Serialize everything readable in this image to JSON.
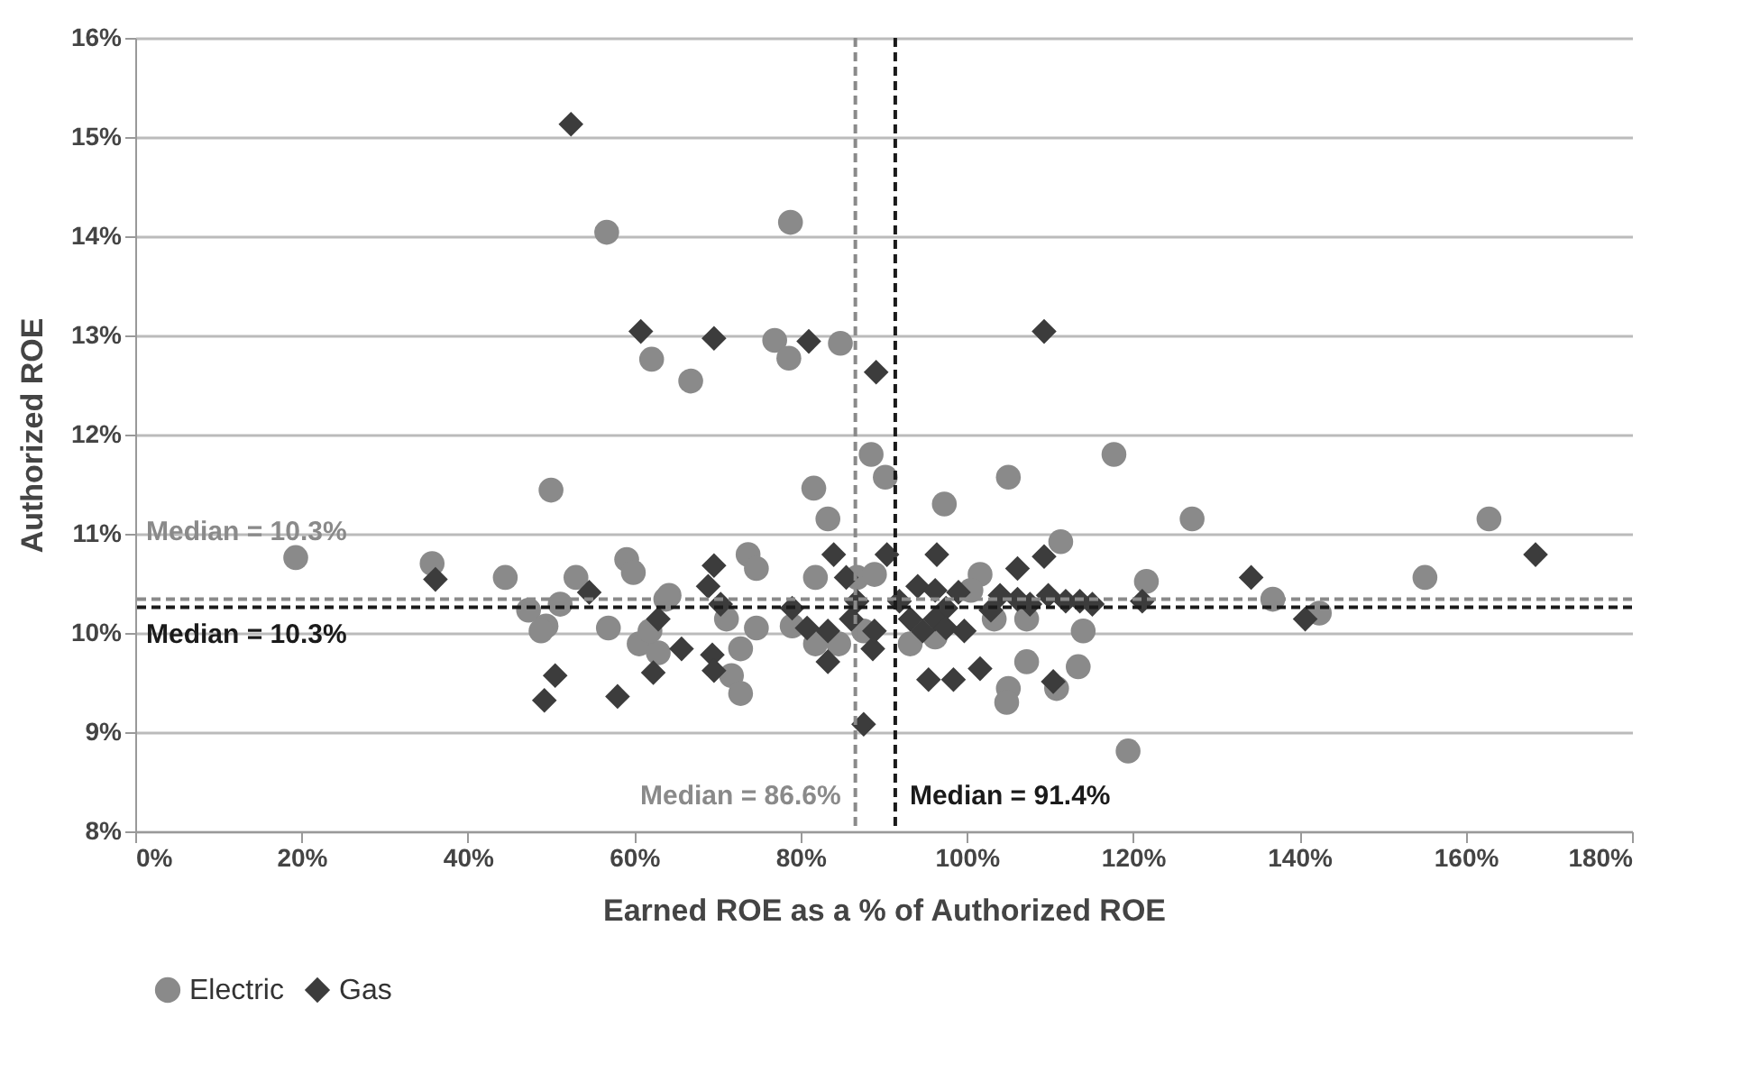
{
  "chart_data": {
    "type": "scatter",
    "xlabel": "Earned ROE as a % of Authorized ROE",
    "ylabel": "Authorized ROE",
    "xlim": [
      0,
      180
    ],
    "ylim": [
      8,
      16
    ],
    "xticks": [
      {
        "value": 0,
        "label": "0%"
      },
      {
        "value": 20,
        "label": "20%"
      },
      {
        "value": 40,
        "label": "40%"
      },
      {
        "value": 60,
        "label": "60%"
      },
      {
        "value": 80,
        "label": "80%"
      },
      {
        "value": 100,
        "label": "100%"
      },
      {
        "value": 120,
        "label": "120%"
      },
      {
        "value": 140,
        "label": "140%"
      },
      {
        "value": 160,
        "label": "160%"
      },
      {
        "value": 180,
        "label": "180%"
      }
    ],
    "yticks": [
      {
        "value": 8,
        "label": "8%"
      },
      {
        "value": 9,
        "label": "9%"
      },
      {
        "value": 10,
        "label": "10%"
      },
      {
        "value": 11,
        "label": "11%"
      },
      {
        "value": 12,
        "label": "12%"
      },
      {
        "value": 13,
        "label": "13%"
      },
      {
        "value": 14,
        "label": "14%"
      },
      {
        "value": 15,
        "label": "15%"
      },
      {
        "value": 16,
        "label": "16%"
      }
    ],
    "grid": "y",
    "legend": "bottom",
    "series": [
      {
        "name": "Electric",
        "color": "#8a8a8a",
        "marker": "circle",
        "x": [
          56.7,
          78.8,
          62.1,
          66.8,
          76.9,
          78.6,
          84.8,
          88.5,
          117.7,
          105,
          90.2,
          50.0,
          19.3,
          35.7,
          44.5,
          53.0,
          59.1,
          59.9,
          47.3,
          49.4,
          51.1,
          48.8,
          56.9,
          60.6,
          62.9,
          63.8,
          97.3,
          81.6,
          83.3,
          111.3,
          73.7,
          74.7,
          81.8,
          121.6,
          114.0,
          113.4,
          110.8,
          105.0,
          104.8,
          107.2,
          119.4,
          71.7,
          72.8,
          72.8,
          71.1,
          74.7,
          64.2,
          61.9,
          79.0,
          81.8,
          84.6,
          87.6,
          86.8,
          88.9,
          93.2,
          96.2,
          101.6,
          100.5,
          107.2,
          103.3,
          127.1,
          162.8,
          136.8,
          142.4,
          155.1
        ],
        "values": [
          14.04,
          14.14,
          12.76,
          12.54,
          12.95,
          12.77,
          12.92,
          11.8,
          11.8,
          11.57,
          11.57,
          11.44,
          10.76,
          10.7,
          10.56,
          10.56,
          10.74,
          10.61,
          10.23,
          10.07,
          10.29,
          10.02,
          10.05,
          9.89,
          9.8,
          10.34,
          11.3,
          11.46,
          11.15,
          10.92,
          10.79,
          10.65,
          10.56,
          10.52,
          10.02,
          9.66,
          9.44,
          9.44,
          9.3,
          9.71,
          8.81,
          9.57,
          9.39,
          9.84,
          10.14,
          10.05,
          10.38,
          10.02,
          10.07,
          9.89,
          9.89,
          10.02,
          10.56,
          10.59,
          9.89,
          9.96,
          10.59,
          10.43,
          10.14,
          10.14,
          11.15,
          11.15,
          10.34,
          10.2,
          10.56
        ]
      },
      {
        "name": "Gas",
        "color": "#3c3c3c",
        "marker": "diamond",
        "x": [
          52.4,
          60.8,
          69.6,
          81.0,
          89.1,
          109.3,
          36.1,
          54.6,
          62.9,
          62.3,
          50.5,
          49.2,
          58.0,
          109.3,
          96.4,
          90.4,
          84.0,
          69.6,
          121.1,
          113.6,
          115.1,
          110.4,
          101.6,
          98.4,
          95.4,
          87.6,
          88.7,
          83.3,
          65.7,
          69.4,
          69.6,
          68.9,
          70.4,
          79.0,
          80.8,
          83.3,
          86.1,
          86.8,
          88.9,
          85.5,
          91.9,
          93.2,
          94.7,
          94.1,
          96.2,
          97.5,
          99.0,
          96.2,
          97.5,
          99.7,
          102.9,
          104.0,
          106.1,
          106.1,
          107.6,
          109.8,
          111.9,
          168.4,
          134.2,
          140.7
        ],
        "values": [
          15.13,
          13.04,
          12.97,
          12.94,
          12.63,
          13.04,
          10.54,
          10.41,
          10.14,
          9.6,
          9.57,
          9.32,
          9.36,
          10.77,
          10.79,
          10.79,
          10.79,
          10.68,
          10.32,
          10.32,
          10.29,
          9.51,
          9.64,
          9.53,
          9.53,
          9.08,
          9.84,
          9.71,
          9.84,
          9.78,
          9.62,
          10.47,
          10.29,
          10.25,
          10.05,
          10.02,
          10.14,
          10.32,
          10.02,
          10.56,
          10.32,
          10.14,
          10.02,
          10.47,
          10.43,
          10.25,
          10.41,
          10.14,
          10.05,
          10.02,
          10.23,
          10.38,
          10.65,
          10.34,
          10.29,
          10.38,
          10.32,
          10.79,
          10.56,
          10.14
        ]
      }
    ],
    "ref_lines": [
      {
        "axis": "y",
        "value": 10.34,
        "label": "Median = 10.3%",
        "color": "#8a8a8a",
        "line_style": "dashed"
      },
      {
        "axis": "y",
        "value": 10.26,
        "label": "Median = 10.3%",
        "color": "#1a1a1a",
        "line_style": "dashed"
      },
      {
        "axis": "x",
        "value": 86.6,
        "label": "Median = 86.6%",
        "color": "#8a8a8a",
        "line_style": "dashed"
      },
      {
        "axis": "x",
        "value": 91.4,
        "label": "Median = 91.4%",
        "color": "#1a1a1a",
        "line_style": "dashed"
      }
    ]
  }
}
